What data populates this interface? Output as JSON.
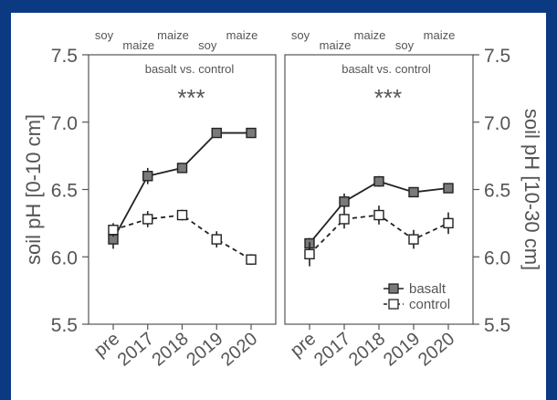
{
  "chart_data": [
    {
      "type": "line",
      "panel": "left",
      "annotation": "basalt vs. control",
      "significance": "***",
      "crops": [
        "soy",
        "maize",
        "maize",
        "soy",
        "maize"
      ],
      "ylabel": "soil pH [0-10 cm]",
      "ylim": [
        5.5,
        7.5
      ],
      "yticks": [
        "5.5",
        "6.0",
        "6.5",
        "7.0",
        "7.5"
      ],
      "categories": [
        "pre",
        "2017",
        "2018",
        "2019",
        "2020"
      ],
      "series": [
        {
          "name": "basalt",
          "values": [
            6.13,
            6.6,
            6.66,
            6.92,
            6.92
          ],
          "err": [
            0.07,
            0.06,
            0.03,
            0.02,
            0.02
          ]
        },
        {
          "name": "control",
          "values": [
            6.2,
            6.28,
            6.31,
            6.13,
            5.98
          ],
          "err": [
            0.05,
            0.06,
            0.04,
            0.06,
            0.04
          ]
        }
      ]
    },
    {
      "type": "line",
      "panel": "right",
      "annotation": "basalt vs. control",
      "significance": "***",
      "crops": [
        "soy",
        "maize",
        "maize",
        "soy",
        "maize"
      ],
      "ylabel": "soil pH [10-30 cm]",
      "ylim": [
        5.5,
        7.5
      ],
      "yticks": [
        "5.5",
        "6.0",
        "6.5",
        "7.0",
        "7.5"
      ],
      "categories": [
        "pre",
        "2017",
        "2018",
        "2019",
        "2020"
      ],
      "legend": [
        "basalt",
        "control"
      ],
      "series": [
        {
          "name": "basalt",
          "values": [
            6.1,
            6.41,
            6.56,
            6.48,
            6.51
          ],
          "err": [
            0.04,
            0.06,
            0.04,
            0.03,
            0.03
          ]
        },
        {
          "name": "control",
          "values": [
            6.02,
            6.28,
            6.31,
            6.13,
            6.25
          ],
          "err": [
            0.09,
            0.07,
            0.07,
            0.07,
            0.08
          ]
        }
      ]
    }
  ],
  "colors": {
    "background": "#0b3a82",
    "basalt_fill": "#7a7a7a",
    "control_fill": "#ffffff",
    "stroke": "#222222"
  }
}
